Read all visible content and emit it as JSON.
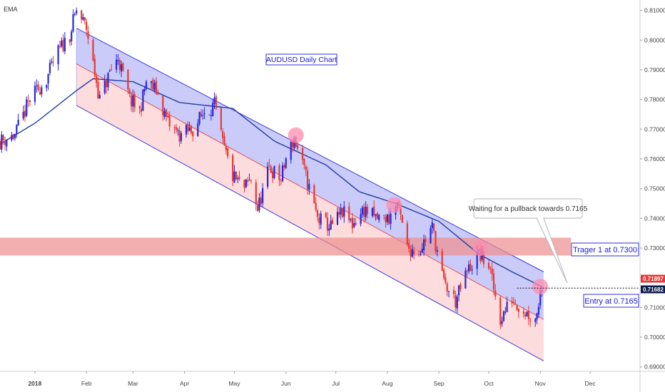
{
  "indicator_label": "EMA",
  "chart_data": {
    "type": "candlestick",
    "title": "AUDUSD Daily Chart",
    "y_ticks": [
      "0.69000",
      "0.70000",
      "0.71000",
      "0.72000",
      "0.73000",
      "0.74000",
      "0.75000",
      "0.76000",
      "0.77000",
      "0.78000",
      "0.79000",
      "0.80000",
      "0.81000"
    ],
    "x_ticks": [
      {
        "label": "2018",
        "date": "2018-01-01"
      },
      {
        "label": "Feb",
        "date": "2018-02-01"
      },
      {
        "label": "Mar",
        "date": "2018-03-01"
      },
      {
        "label": "Apr",
        "date": "2018-04-01"
      },
      {
        "label": "May",
        "date": "2018-05-01"
      },
      {
        "label": "Jun",
        "date": "2018-06-01"
      },
      {
        "label": "Jul",
        "date": "2018-07-01"
      },
      {
        "label": "Aug",
        "date": "2018-08-01"
      },
      {
        "label": "Sep",
        "date": "2018-09-01"
      },
      {
        "label": "Oct",
        "date": "2018-10-01"
      },
      {
        "label": "Nov",
        "date": "2018-11-01"
      },
      {
        "label": "Dec",
        "date": "2018-12-01"
      }
    ],
    "ylim": [
      0.6885,
      0.8135
    ],
    "xlim": [
      "2017-12-11",
      "2018-12-31"
    ],
    "price_points": [
      [
        "2017-12-11",
        0.766
      ],
      [
        "2017-12-20",
        0.768
      ],
      [
        "2017-12-29",
        0.78
      ],
      [
        "2018-01-08",
        0.787
      ],
      [
        "2018-01-15",
        0.796
      ],
      [
        "2018-01-22",
        0.802
      ],
      [
        "2018-01-26",
        0.81
      ],
      [
        "2018-02-01",
        0.804
      ],
      [
        "2018-02-05",
        0.792
      ],
      [
        "2018-02-09",
        0.78
      ],
      [
        "2018-02-15",
        0.789
      ],
      [
        "2018-02-20",
        0.794
      ],
      [
        "2018-02-27",
        0.78
      ],
      [
        "2018-03-05",
        0.776
      ],
      [
        "2018-03-09",
        0.786
      ],
      [
        "2018-03-15",
        0.783
      ],
      [
        "2018-03-22",
        0.772
      ],
      [
        "2018-03-29",
        0.768
      ],
      [
        "2018-04-06",
        0.77
      ],
      [
        "2018-04-13",
        0.776
      ],
      [
        "2018-04-19",
        0.778
      ],
      [
        "2018-04-24",
        0.765
      ],
      [
        "2018-04-30",
        0.754
      ],
      [
        "2018-05-07",
        0.75
      ],
      [
        "2018-05-11",
        0.753
      ],
      [
        "2018-05-15",
        0.743
      ],
      [
        "2018-05-22",
        0.757
      ],
      [
        "2018-05-29",
        0.753
      ],
      [
        "2018-06-01",
        0.76
      ],
      [
        "2018-06-06",
        0.767
      ],
      [
        "2018-06-13",
        0.754
      ],
      [
        "2018-06-20",
        0.74
      ],
      [
        "2018-06-28",
        0.737
      ],
      [
        "2018-07-05",
        0.742
      ],
      [
        "2018-07-11",
        0.738
      ],
      [
        "2018-07-18",
        0.743
      ],
      [
        "2018-07-25",
        0.74
      ],
      [
        "2018-08-02",
        0.74
      ],
      [
        "2018-08-07",
        0.745
      ],
      [
        "2018-08-13",
        0.73
      ],
      [
        "2018-08-20",
        0.729
      ],
      [
        "2018-08-28",
        0.737
      ],
      [
        "2018-09-04",
        0.718
      ],
      [
        "2018-09-11",
        0.712
      ],
      [
        "2018-09-18",
        0.722
      ],
      [
        "2018-09-25",
        0.728
      ],
      [
        "2018-10-01",
        0.724
      ],
      [
        "2018-10-08",
        0.706
      ],
      [
        "2018-10-15",
        0.713
      ],
      [
        "2018-10-22",
        0.709
      ],
      [
        "2018-10-29",
        0.706
      ],
      [
        "2018-11-02",
        0.718
      ]
    ],
    "ema_points": [
      [
        "2017-12-11",
        0.765
      ],
      [
        "2018-01-01",
        0.772
      ],
      [
        "2018-01-26",
        0.783
      ],
      [
        "2018-02-05",
        0.787
      ],
      [
        "2018-03-01",
        0.786
      ],
      [
        "2018-03-29",
        0.779
      ],
      [
        "2018-04-30",
        0.777
      ],
      [
        "2018-05-25",
        0.766
      ],
      [
        "2018-06-25",
        0.758
      ],
      [
        "2018-07-15",
        0.749
      ],
      [
        "2018-08-06",
        0.745
      ],
      [
        "2018-09-01",
        0.739
      ],
      [
        "2018-09-25",
        0.728
      ],
      [
        "2018-10-15",
        0.722
      ],
      [
        "2018-11-02",
        0.717
      ]
    ],
    "channel": {
      "upper": {
        "start": [
          "2018-01-26",
          0.804
        ],
        "end": [
          "2018-11-03",
          0.722
        ]
      },
      "middle": {
        "start": [
          "2018-01-26",
          0.792
        ],
        "end": [
          "2018-11-03",
          0.706
        ]
      },
      "lower": {
        "start": [
          "2018-01-26",
          0.778
        ],
        "end": [
          "2018-11-03",
          0.692
        ]
      }
    },
    "resistance_zone": [
      0.7275,
      0.7335
    ],
    "highlight_points": [
      [
        "2018-06-07",
        0.768
      ],
      [
        "2018-08-05",
        0.7445
      ],
      [
        "2018-09-26",
        0.73
      ],
      [
        "2018-11-01",
        0.717
      ]
    ],
    "entry_level": 0.7165,
    "price_labels": [
      {
        "text": "0.71897",
        "value": 0.71897,
        "color": "#e53935"
      },
      {
        "text": "0.71682",
        "value": 0.71682,
        "color": "#0d1b4c"
      }
    ],
    "annotations": {
      "callout": "Waiting for a pullback towards 0.7165",
      "target": "Trager 1 at 0.7300",
      "entry": "Entry at 0.7165"
    },
    "colors": {
      "bull": "#2727d9",
      "bear": "#e53935",
      "ema": "#1f3e9e",
      "channel": "#3b3bdc",
      "upper_fill": "#b9b9f7",
      "lower_fill": "#fbd0d0",
      "zone": "#ee8d8d",
      "circle": "#ff8cae"
    }
  }
}
